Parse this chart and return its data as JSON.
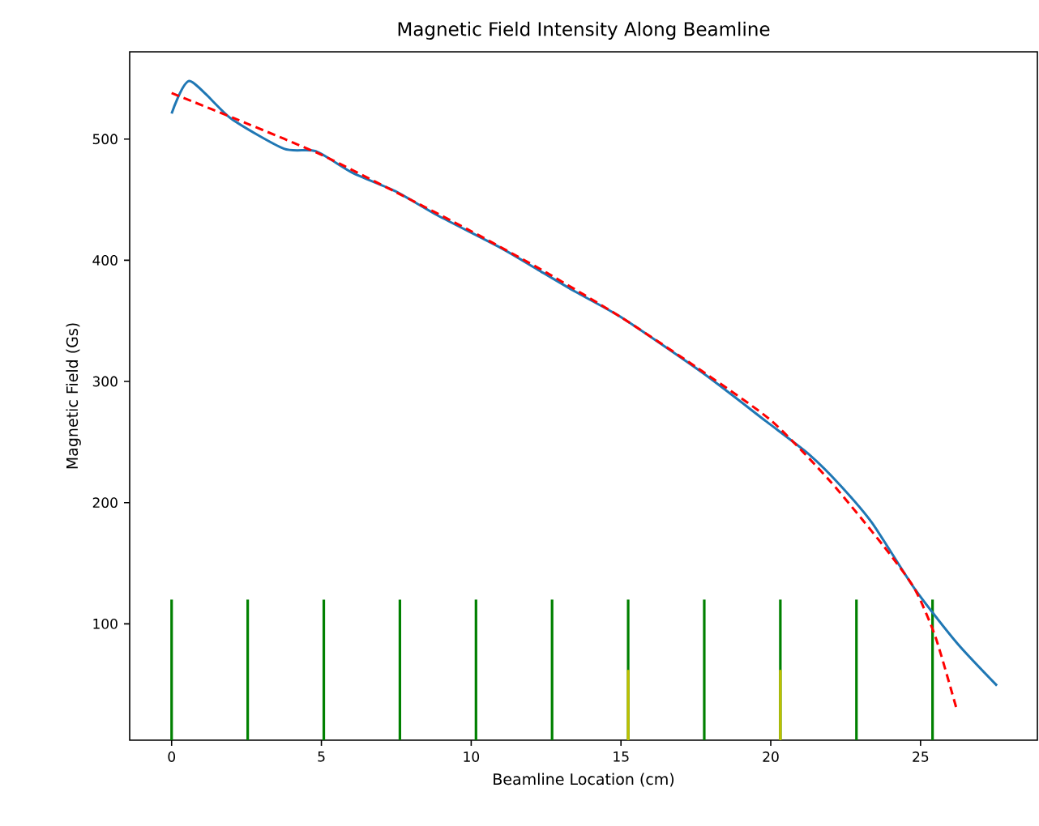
{
  "chart_data": {
    "type": "line",
    "title": "Magnetic Field Intensity Along Beamline",
    "xlabel": "Beamline Location (cm)",
    "ylabel": "Magnetic Field (Gs)",
    "xlim": [
      -1.4,
      28.9
    ],
    "ylim": [
      4,
      572
    ],
    "xticks": [
      0,
      5,
      10,
      15,
      20,
      25
    ],
    "yticks": [
      100,
      200,
      300,
      400,
      500
    ],
    "grid": false,
    "marker": "none",
    "series": [
      {
        "type": "bar",
        "color": "#008000",
        "x": [
          0,
          2.54,
          5.08,
          7.62,
          10.16,
          12.7,
          15.24,
          17.78,
          20.32,
          22.86,
          25.4
        ],
        "values": [
          120,
          120,
          120,
          120,
          120,
          120,
          120,
          120,
          120,
          120,
          120
        ]
      },
      {
        "type": "bar",
        "color": "#bfbf00",
        "x": [
          15.24,
          20.32
        ],
        "values": [
          62,
          62
        ]
      },
      {
        "color": "#1f77b4",
        "line_style": "solid",
        "x": [
          0,
          0.6,
          1.98,
          3.75,
          4.81,
          6.05,
          7.47,
          8.88,
          11.0,
          12.24,
          13.48,
          15.07,
          17.73,
          19.85,
          21.27,
          22.33,
          23.39,
          24.8,
          26.22,
          27.55
        ],
        "values": [
          521,
          548,
          517,
          492,
          490,
          472,
          457,
          437,
          410,
          392,
          374,
          352,
          307,
          267,
          240,
          214,
          183,
          129,
          84,
          49
        ]
      },
      {
        "color": "#ff0000",
        "line_style": "dashed",
        "x": [
          0,
          2.5,
          5,
          7.5,
          10,
          12.5,
          15,
          17.5,
          20,
          21.97,
          23.74,
          24.8,
          25.5,
          26.2
        ],
        "values": [
          538,
          513,
          487,
          456,
          424,
          390,
          353,
          312,
          268,
          218,
          165,
          129,
          89,
          30
        ]
      }
    ]
  }
}
